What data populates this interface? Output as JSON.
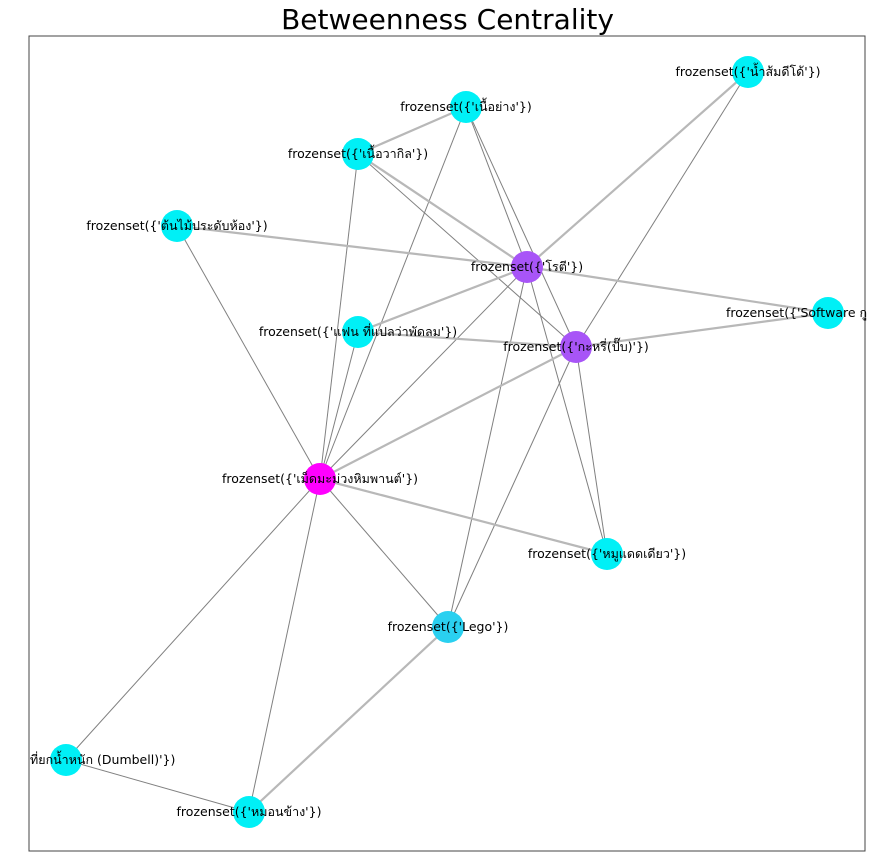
{
  "title": "Betweenness Centrality",
  "colors": {
    "low": "#00f0f6",
    "mid_low": "#2ad0f0",
    "mid_high": "#a855f7",
    "high": "#ff00ff",
    "edge": "#808080"
  },
  "nodes": [
    {
      "id": "n1",
      "label": "frozenset({'น้ำส้มดีโด้'})",
      "color": "low"
    },
    {
      "id": "n2",
      "label": "frozenset({'เนื้อย่าง'})",
      "color": "low"
    },
    {
      "id": "n3",
      "label": "frozenset({'เนื้อวากิล'})",
      "color": "low"
    },
    {
      "id": "n4",
      "label": "frozenset({'ต้นไม้ประดับห้อง'})",
      "color": "low"
    },
    {
      "id": "n5",
      "label": "frozenset({'โรตี'})",
      "color": "mid_high"
    },
    {
      "id": "n6",
      "label": "frozenset({'Software กู",
      "color": "low"
    },
    {
      "id": "n7",
      "label": "frozenset({'แฟน ที่แปลว่าพัดลม'})",
      "color": "low"
    },
    {
      "id": "n8",
      "label": "frozenset({'กะหรี่(ปั๊บ)'})",
      "color": "mid_high"
    },
    {
      "id": "n9",
      "label": "frozenset({'เม็ดมะม่วงหิมพานต์'})",
      "color": "high"
    },
    {
      "id": "n10",
      "label": "frozenset({'หมูแดดเดียว'})",
      "color": "low"
    },
    {
      "id": "n11",
      "label": "frozenset({'Lego'})",
      "color": "mid_low"
    },
    {
      "id": "n12",
      "label": "ที่ยกน้ำหนัก (Dumbell)'})",
      "color": "low"
    },
    {
      "id": "n13",
      "label": "frozenset({'หมอนข้าง'})",
      "color": "low"
    }
  ],
  "edges": [
    [
      "n2",
      "n3"
    ],
    [
      "n2",
      "n5"
    ],
    [
      "n2",
      "n8"
    ],
    [
      "n2",
      "n9"
    ],
    [
      "n3",
      "n5"
    ],
    [
      "n3",
      "n8"
    ],
    [
      "n3",
      "n9"
    ],
    [
      "n1",
      "n5"
    ],
    [
      "n1",
      "n8"
    ],
    [
      "n4",
      "n5"
    ],
    [
      "n4",
      "n9"
    ],
    [
      "n5",
      "n6"
    ],
    [
      "n5",
      "n7"
    ],
    [
      "n5",
      "n9"
    ],
    [
      "n5",
      "n10"
    ],
    [
      "n5",
      "n11"
    ],
    [
      "n8",
      "n6"
    ],
    [
      "n8",
      "n7"
    ],
    [
      "n8",
      "n9"
    ],
    [
      "n8",
      "n10"
    ],
    [
      "n8",
      "n11"
    ],
    [
      "n9",
      "n7"
    ],
    [
      "n9",
      "n10"
    ],
    [
      "n9",
      "n11"
    ],
    [
      "n9",
      "n12"
    ],
    [
      "n9",
      "n13"
    ],
    [
      "n11",
      "n13"
    ],
    [
      "n12",
      "n13"
    ]
  ],
  "thick_edges": [
    [
      "n4",
      "n5"
    ],
    [
      "n5",
      "n6"
    ],
    [
      "n5",
      "n7"
    ],
    [
      "n8",
      "n6"
    ],
    [
      "n8",
      "n7"
    ],
    [
      "n1",
      "n5"
    ],
    [
      "n8",
      "n9"
    ],
    [
      "n9",
      "n10"
    ],
    [
      "n11",
      "n13"
    ],
    [
      "n2",
      "n3"
    ],
    [
      "n3",
      "n5"
    ]
  ]
}
